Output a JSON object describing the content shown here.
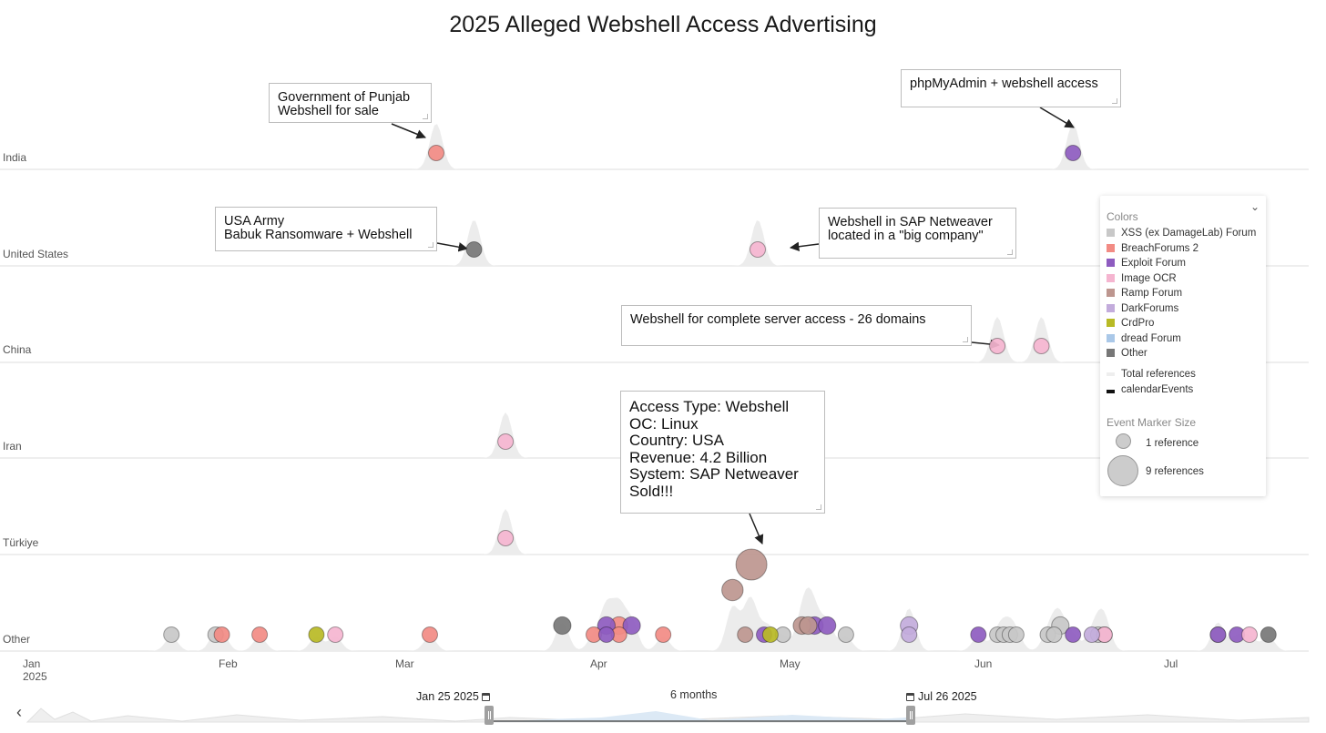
{
  "title": "2025 Alleged Webshell Access Advertising",
  "lanes": [
    "India",
    "United States",
    "China",
    "Iran",
    "Türkiye",
    "Other"
  ],
  "x_axis": {
    "ticks": [
      {
        "label": "Jan",
        "sub": "2025",
        "date": "2025-01-01"
      },
      {
        "label": "Feb",
        "sub": "",
        "date": "2025-02-01"
      },
      {
        "label": "Mar",
        "sub": "",
        "date": "2025-03-01"
      },
      {
        "label": "Apr",
        "sub": "",
        "date": "2025-04-01"
      },
      {
        "label": "May",
        "sub": "",
        "date": "2025-05-01"
      },
      {
        "label": "Jun",
        "sub": "",
        "date": "2025-06-01"
      },
      {
        "label": "Jul",
        "sub": "",
        "date": "2025-07-01"
      }
    ]
  },
  "annotations": [
    {
      "text": "Government of Punjab\nWebshell for sale"
    },
    {
      "text": "phpMyAdmin + webshell access"
    },
    {
      "text": "USA Army\nBabuk Ransomware + Webshell"
    },
    {
      "text": "Webshell in SAP Netweaver\nlocated in a \"big company\""
    },
    {
      "text": "Webshell for complete server access - 26 domains"
    },
    {
      "text": "Access Type: Webshell\nOC: Linux\nCountry: USA\nRevenue: 4.2 Billion\nSystem: SAP Netweaver\nSold!!!"
    }
  ],
  "legend": {
    "colors_title": "Colors",
    "items": [
      {
        "label": "XSS (ex DamageLab) Forum",
        "color": "#c8c8c8"
      },
      {
        "label": "BreachForums 2",
        "color": "#f28b84"
      },
      {
        "label": "Exploit Forum",
        "color": "#8e5cc0"
      },
      {
        "label": "Image OCR",
        "color": "#f5b5d0"
      },
      {
        "label": "Ramp Forum",
        "color": "#bd968f"
      },
      {
        "label": "DarkForums",
        "color": "#c3acdc"
      },
      {
        "label": "CrdPro",
        "color": "#b8ba25"
      },
      {
        "label": "dread Forum",
        "color": "#aac8e8"
      },
      {
        "label": "Other",
        "color": "#777777"
      }
    ],
    "extra": [
      "Total references",
      "calendarEvents"
    ],
    "size_title": "Event Marker Size",
    "size_items": [
      "1 reference",
      "9 references"
    ]
  },
  "navigator": {
    "start_label": "Jan 25 2025",
    "end_label": "Jul 26 2025",
    "duration_label": "6 months"
  },
  "chart_data": {
    "type": "scatter",
    "title": "2025 Alleged Webshell Access Advertising",
    "x_type": "date",
    "xlim": [
      "2025-01-01",
      "2025-07-31"
    ],
    "y_categories": [
      "India",
      "United States",
      "China",
      "Iran",
      "Türkiye",
      "Other"
    ],
    "size_meaning": "number of references",
    "series": [
      {
        "name": "XSS (ex DamageLab) Forum",
        "color": "#c8c8c8",
        "points": [
          {
            "date": "2025-01-24",
            "lane": "Other",
            "refs": 1
          },
          {
            "date": "2025-01-31",
            "lane": "Other",
            "refs": 1
          },
          {
            "date": "2025-05-01",
            "lane": "Other",
            "refs": 1
          },
          {
            "date": "2025-05-11",
            "lane": "Other",
            "refs": 1
          },
          {
            "date": "2025-06-04",
            "lane": "Other",
            "refs": 1
          },
          {
            "date": "2025-06-05",
            "lane": "Other",
            "refs": 1
          },
          {
            "date": "2025-06-06",
            "lane": "Other",
            "refs": 1
          },
          {
            "date": "2025-06-07",
            "lane": "Other",
            "refs": 1
          },
          {
            "date": "2025-06-12",
            "lane": "Other",
            "refs": 1
          },
          {
            "date": "2025-06-13",
            "lane": "Other",
            "refs": 1
          },
          {
            "date": "2025-06-14",
            "lane": "Other",
            "refs": 2
          },
          {
            "date": "2025-06-20",
            "lane": "Other",
            "refs": 1
          },
          {
            "date": "2025-06-21",
            "lane": "Other",
            "refs": 1
          },
          {
            "date": "2025-07-09",
            "lane": "Other",
            "refs": 1
          }
        ]
      },
      {
        "name": "BreachForums 2",
        "color": "#f28b84",
        "points": [
          {
            "date": "2025-03-07",
            "lane": "India",
            "refs": 1
          },
          {
            "date": "2025-02-01",
            "lane": "Other",
            "refs": 1
          },
          {
            "date": "2025-02-07",
            "lane": "Other",
            "refs": 1
          },
          {
            "date": "2025-03-06",
            "lane": "Other",
            "refs": 1
          },
          {
            "date": "2025-04-01",
            "lane": "Other",
            "refs": 1
          },
          {
            "date": "2025-04-05",
            "lane": "Other",
            "refs": 1
          },
          {
            "date": "2025-04-05",
            "lane": "Other",
            "refs": 2
          },
          {
            "date": "2025-04-12",
            "lane": "Other",
            "refs": 1
          }
        ]
      },
      {
        "name": "Exploit Forum",
        "color": "#8e5cc0",
        "points": [
          {
            "date": "2025-06-16",
            "lane": "India",
            "refs": 1
          },
          {
            "date": "2025-04-03",
            "lane": "Other",
            "refs": 1
          },
          {
            "date": "2025-04-03",
            "lane": "Other",
            "refs": 2
          },
          {
            "date": "2025-04-07",
            "lane": "Other",
            "refs": 2
          },
          {
            "date": "2025-04-28",
            "lane": "Other",
            "refs": 1
          },
          {
            "date": "2025-05-06",
            "lane": "Other",
            "refs": 2
          },
          {
            "date": "2025-05-08",
            "lane": "Other",
            "refs": 2
          },
          {
            "date": "2025-06-01",
            "lane": "Other",
            "refs": 1
          },
          {
            "date": "2025-06-16",
            "lane": "Other",
            "refs": 1
          },
          {
            "date": "2025-07-09",
            "lane": "Other",
            "refs": 1
          },
          {
            "date": "2025-07-12",
            "lane": "Other",
            "refs": 1
          }
        ]
      },
      {
        "name": "Image OCR",
        "color": "#f5b5d0",
        "points": [
          {
            "date": "2025-04-27",
            "lane": "United States",
            "refs": 1
          },
          {
            "date": "2025-06-04",
            "lane": "China",
            "refs": 1
          },
          {
            "date": "2025-06-11",
            "lane": "China",
            "refs": 1
          },
          {
            "date": "2025-03-18",
            "lane": "Iran",
            "refs": 1
          },
          {
            "date": "2025-03-18",
            "lane": "Türkiye",
            "refs": 1
          },
          {
            "date": "2025-02-19",
            "lane": "Other",
            "refs": 1
          },
          {
            "date": "2025-06-21",
            "lane": "Other",
            "refs": 1
          },
          {
            "date": "2025-07-14",
            "lane": "Other",
            "refs": 1
          }
        ]
      },
      {
        "name": "Ramp Forum",
        "color": "#bd968f",
        "points": [
          {
            "date": "2025-04-26",
            "lane": "Other",
            "refs": 9
          },
          {
            "date": "2025-04-23",
            "lane": "Other",
            "refs": 4
          },
          {
            "date": "2025-04-25",
            "lane": "Other",
            "refs": 1
          },
          {
            "date": "2025-05-04",
            "lane": "Other",
            "refs": 2
          },
          {
            "date": "2025-05-05",
            "lane": "Other",
            "refs": 2
          }
        ]
      },
      {
        "name": "DarkForums",
        "color": "#c3acdc",
        "points": [
          {
            "date": "2025-05-21",
            "lane": "Other",
            "refs": 1
          },
          {
            "date": "2025-05-21",
            "lane": "Other",
            "refs": 2
          },
          {
            "date": "2025-06-19",
            "lane": "Other",
            "refs": 1
          }
        ]
      },
      {
        "name": "CrdPro",
        "color": "#b8ba25",
        "points": [
          {
            "date": "2025-02-16",
            "lane": "Other",
            "refs": 1
          },
          {
            "date": "2025-04-29",
            "lane": "Other",
            "refs": 1
          }
        ]
      },
      {
        "name": "Other",
        "color": "#777777",
        "points": [
          {
            "date": "2025-03-13",
            "lane": "United States",
            "refs": 1
          },
          {
            "date": "2025-03-27",
            "lane": "Other",
            "refs": 2
          },
          {
            "date": "2025-07-17",
            "lane": "Other",
            "refs": 1
          }
        ]
      }
    ]
  }
}
